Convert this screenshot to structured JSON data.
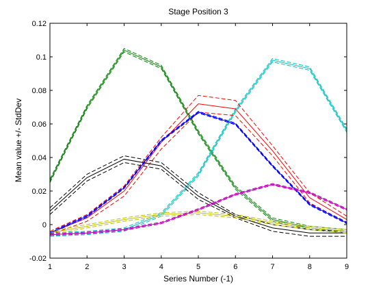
{
  "chart_data": {
    "type": "line",
    "title": "Stage Position 3",
    "xlabel": "Series Number (-1)",
    "ylabel": "Mean value +/- StdDev",
    "xlim": [
      1,
      9
    ],
    "ylim": [
      -0.02,
      0.12
    ],
    "xticks": [
      1,
      2,
      3,
      4,
      5,
      6,
      7,
      8,
      9
    ],
    "xtick_labels": [
      "1",
      "2",
      "3",
      "4",
      "5",
      "6",
      "7",
      "8",
      "9"
    ],
    "yticks": [
      -0.02,
      0,
      0.02,
      0.04,
      0.06,
      0.08,
      0.1,
      0.12
    ],
    "ytick_labels": [
      "-0.02",
      "0",
      "0.02",
      "0.04",
      "0.06",
      "0.08",
      "0.1",
      "0.12"
    ],
    "grid": false,
    "legend": false,
    "x": [
      1,
      2,
      3,
      4,
      5,
      6,
      7,
      8,
      9
    ],
    "series": [
      {
        "color": "#008000",
        "mean": [
          0.026,
          0.07,
          0.104,
          0.094,
          0.055,
          0.022,
          0.003,
          -0.002,
          -0.004
        ],
        "upper": [
          0.027,
          0.071,
          0.105,
          0.095,
          0.056,
          0.023,
          0.004,
          -0.001,
          -0.003
        ],
        "lower": [
          0.025,
          0.069,
          0.103,
          0.093,
          0.054,
          0.021,
          0.002,
          -0.003,
          -0.005
        ]
      },
      {
        "color": "#00bfbf",
        "mean": [
          -0.006,
          -0.005,
          -0.003,
          0.006,
          0.03,
          0.068,
          0.098,
          0.093,
          0.056
        ],
        "upper": [
          -0.005,
          -0.004,
          -0.002,
          0.007,
          0.031,
          0.069,
          0.099,
          0.094,
          0.057
        ],
        "lower": [
          -0.007,
          -0.006,
          -0.004,
          0.005,
          0.029,
          0.067,
          0.097,
          0.092,
          0.055
        ]
      },
      {
        "color": "#ff0000",
        "mean": [
          -0.005,
          0.004,
          0.02,
          0.049,
          0.072,
          0.069,
          0.044,
          0.016,
          0.003
        ],
        "upper": [
          -0.004,
          0.006,
          0.023,
          0.052,
          0.077,
          0.074,
          0.047,
          0.019,
          0.005
        ],
        "lower": [
          -0.006,
          0.002,
          0.017,
          0.045,
          0.067,
          0.065,
          0.041,
          0.013,
          0.001
        ]
      },
      {
        "color": "#0000ff",
        "mean": [
          -0.005,
          0.005,
          0.022,
          0.05,
          0.067,
          0.06,
          0.035,
          0.012,
          0.001
        ],
        "upper": [
          -0.0045,
          0.0055,
          0.0225,
          0.0505,
          0.0675,
          0.0605,
          0.0355,
          0.0125,
          0.0015
        ],
        "lower": [
          -0.0055,
          0.0045,
          0.0215,
          0.0495,
          0.0665,
          0.0595,
          0.0345,
          0.0115,
          0.0005
        ]
      },
      {
        "color": "#000000",
        "mean": [
          0.008,
          0.028,
          0.039,
          0.035,
          0.017,
          0.005,
          -0.002,
          -0.005,
          -0.005
        ],
        "upper": [
          0.01,
          0.03,
          0.041,
          0.037,
          0.019,
          0.006,
          0.0,
          -0.003,
          -0.004
        ],
        "lower": [
          0.006,
          0.026,
          0.037,
          0.033,
          0.015,
          0.004,
          -0.004,
          -0.007,
          -0.007
        ]
      },
      {
        "color": "#bfbf00",
        "mean": [
          -0.005,
          -0.001,
          0.003,
          0.006,
          0.007,
          0.005,
          0.001,
          -0.002,
          -0.004
        ],
        "upper": [
          -0.004,
          0.0,
          0.004,
          0.007,
          0.008,
          0.006,
          0.002,
          -0.001,
          -0.003
        ],
        "lower": [
          -0.006,
          -0.002,
          0.002,
          0.005,
          0.006,
          0.004,
          0.0,
          -0.003,
          -0.005
        ]
      },
      {
        "color": "#bf00bf",
        "mean": [
          -0.006,
          -0.005,
          -0.003,
          0.001,
          0.009,
          0.018,
          0.024,
          0.019,
          0.009
        ],
        "upper": [
          -0.0055,
          -0.0045,
          -0.0025,
          0.0015,
          0.0095,
          0.0185,
          0.0245,
          0.0195,
          0.0095
        ],
        "lower": [
          -0.0065,
          -0.0055,
          -0.0035,
          0.0005,
          0.0085,
          0.0175,
          0.0235,
          0.0185,
          0.0085
        ]
      }
    ]
  }
}
